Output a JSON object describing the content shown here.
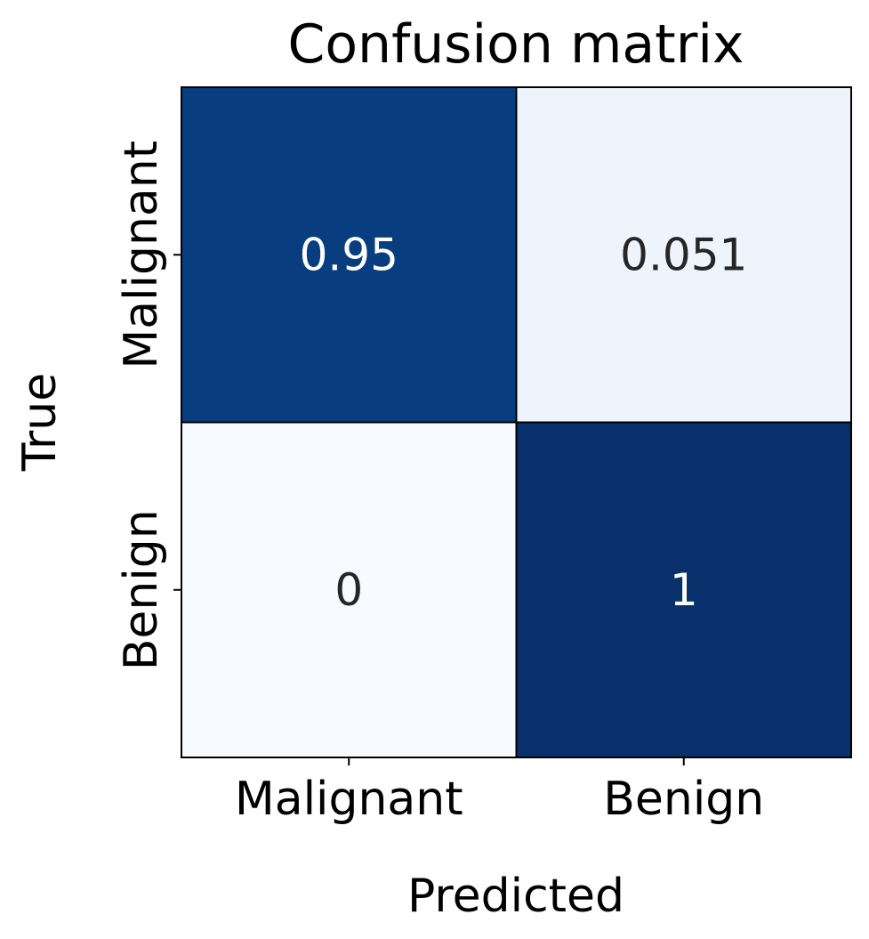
{
  "chart_data": {
    "type": "heatmap",
    "title": "Confusion matrix",
    "xlabel": "Predicted",
    "ylabel": "True",
    "x_categories": [
      "Malignant",
      "Benign"
    ],
    "y_categories": [
      "Malignant",
      "Benign"
    ],
    "values": [
      [
        0.95,
        0.051
      ],
      [
        0,
        1
      ]
    ],
    "value_labels": [
      [
        "0.95",
        "0.051"
      ],
      [
        "0",
        "1"
      ]
    ],
    "colormap": "Blues",
    "value_range": [
      0,
      1
    ],
    "colorbar": false,
    "colors": {
      "low": "#f7fbff",
      "high": "#08306b",
      "dark_text": "#262626",
      "light_text": "#ffffff",
      "cell_border": "#000000"
    }
  }
}
